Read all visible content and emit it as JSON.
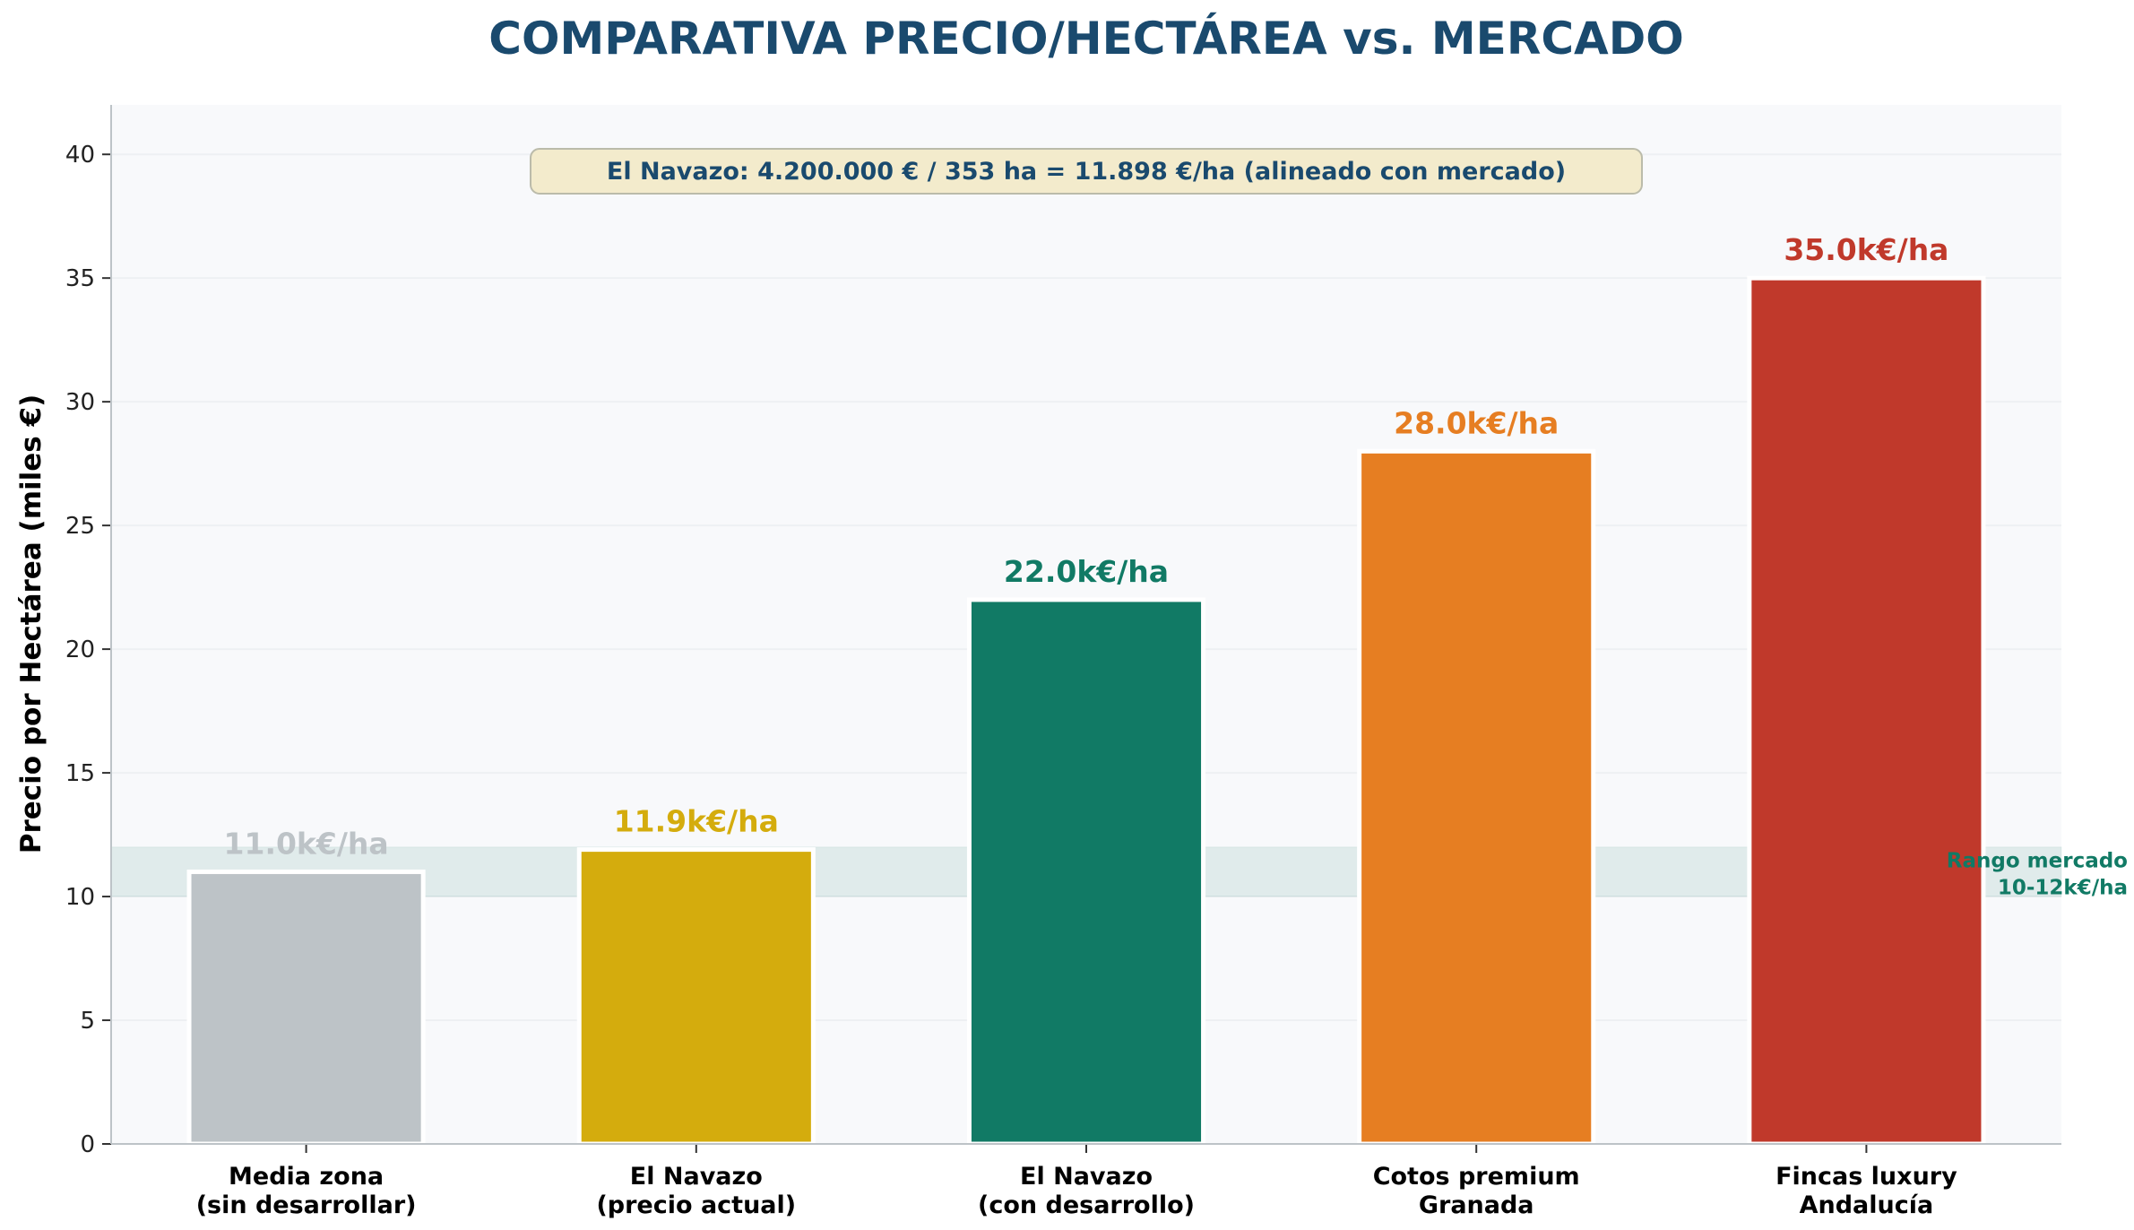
{
  "chart_data": {
    "type": "bar",
    "title": "COMPARATIVA PRECIO/HECTÁREA vs. MERCADO",
    "ylabel": "Precio por Hectárea (miles €)",
    "xlabel": "",
    "ylim": [
      0,
      42
    ],
    "yticks": [
      0,
      5,
      10,
      15,
      20,
      25,
      30,
      35,
      40
    ],
    "grid": "horizontal",
    "categories": [
      [
        "Media zona",
        "(sin desarrollar)"
      ],
      [
        "El Navazo",
        "(precio actual)"
      ],
      [
        "El Navazo",
        "(con desarrollo)"
      ],
      [
        "Cotos premium",
        "Granada"
      ],
      [
        "Fincas luxury",
        "Andalucía"
      ]
    ],
    "values": [
      11.0,
      11.9,
      22.0,
      28.0,
      35.0
    ],
    "data_labels": [
      "11.0k€/ha",
      "11.9k€/ha",
      "22.0k€/ha",
      "28.0k€/ha",
      "35.0k€/ha"
    ],
    "colors": [
      "#bdc3c7",
      "#d4ac0d",
      "#117a65",
      "#e67e22",
      "#c0392b"
    ],
    "band": {
      "range": [
        10,
        12
      ],
      "color": "#117a65",
      "label": [
        "Rango mercado",
        "10-12k€/ha"
      ]
    },
    "annotation": "El Navazo: 4.200.000 € / 353 ha = 11.898 €/ha (alineado con mercado)",
    "title_color": "#1a4a6e",
    "plot_background": "#f8f9fb"
  }
}
